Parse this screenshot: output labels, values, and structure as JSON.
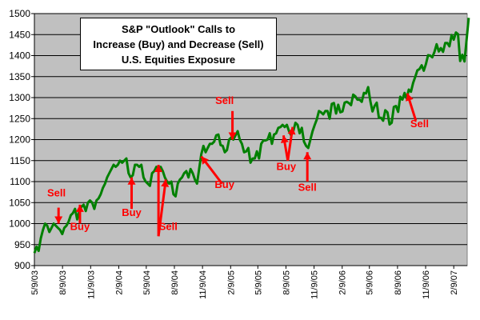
{
  "chart_data": {
    "type": "line",
    "title_lines": [
      "S&P \"Outlook\" Calls to",
      "Increase (Buy) and Decrease (Sell)",
      "U.S. Equities Exposure"
    ],
    "ylim": [
      900,
      1500
    ],
    "yticks": [
      900,
      950,
      1000,
      1050,
      1100,
      1150,
      1200,
      1250,
      1300,
      1350,
      1400,
      1450,
      1500
    ],
    "xlim": [
      "2003-05-09",
      "2007-03-25"
    ],
    "xticks": [
      "5/9/03",
      "8/9/03",
      "11/9/03",
      "2/9/04",
      "5/9/04",
      "8/9/04",
      "11/9/04",
      "2/9/05",
      "5/9/05",
      "8/9/05",
      "11/9/05",
      "2/9/06",
      "5/9/06",
      "8/9/06",
      "11/9/06",
      "2/9/07"
    ],
    "grid": true,
    "plot_background": "#c0c0c0",
    "series": [
      {
        "color": "#008000",
        "points": [
          [
            "2003-05-09",
            930
          ],
          [
            "2003-05-16",
            945
          ],
          [
            "2003-05-23",
            935
          ],
          [
            "2003-05-30",
            965
          ],
          [
            "2003-06-06",
            985
          ],
          [
            "2003-06-13",
            1000
          ],
          [
            "2003-06-20",
            995
          ],
          [
            "2003-06-27",
            980
          ],
          [
            "2003-07-04",
            990
          ],
          [
            "2003-07-11",
            1000
          ],
          [
            "2003-07-18",
            995
          ],
          [
            "2003-07-25",
            990
          ],
          [
            "2003-08-01",
            985
          ],
          [
            "2003-08-08",
            975
          ],
          [
            "2003-08-15",
            990
          ],
          [
            "2003-08-22",
            995
          ],
          [
            "2003-08-29",
            1005
          ],
          [
            "2003-09-05",
            1020
          ],
          [
            "2003-09-12",
            1025
          ],
          [
            "2003-09-19",
            1035
          ],
          [
            "2003-09-26",
            1010
          ],
          [
            "2003-10-03",
            1030
          ],
          [
            "2003-10-10",
            1040
          ],
          [
            "2003-10-17",
            1045
          ],
          [
            "2003-10-24",
            1030
          ],
          [
            "2003-10-31",
            1050
          ],
          [
            "2003-11-07",
            1055
          ],
          [
            "2003-11-14",
            1050
          ],
          [
            "2003-11-21",
            1035
          ],
          [
            "2003-11-28",
            1055
          ],
          [
            "2003-12-05",
            1060
          ],
          [
            "2003-12-12",
            1070
          ],
          [
            "2003-12-19",
            1085
          ],
          [
            "2003-12-26",
            1095
          ],
          [
            "2004-01-02",
            1110
          ],
          [
            "2004-01-09",
            1120
          ],
          [
            "2004-01-16",
            1130
          ],
          [
            "2004-01-23",
            1140
          ],
          [
            "2004-01-30",
            1135
          ],
          [
            "2004-02-06",
            1140
          ],
          [
            "2004-02-13",
            1150
          ],
          [
            "2004-02-20",
            1145
          ],
          [
            "2004-02-27",
            1150
          ],
          [
            "2004-03-05",
            1155
          ],
          [
            "2004-03-12",
            1120
          ],
          [
            "2004-03-19",
            1110
          ],
          [
            "2004-03-26",
            1115
          ],
          [
            "2004-04-02",
            1140
          ],
          [
            "2004-04-09",
            1140
          ],
          [
            "2004-04-16",
            1135
          ],
          [
            "2004-04-23",
            1140
          ],
          [
            "2004-04-30",
            1110
          ],
          [
            "2004-05-07",
            1100
          ],
          [
            "2004-05-14",
            1095
          ],
          [
            "2004-05-21",
            1090
          ],
          [
            "2004-05-28",
            1120
          ],
          [
            "2004-06-04",
            1125
          ],
          [
            "2004-06-11",
            1135
          ],
          [
            "2004-06-18",
            1130
          ],
          [
            "2004-06-25",
            1135
          ],
          [
            "2004-07-02",
            1125
          ],
          [
            "2004-07-09",
            1110
          ],
          [
            "2004-07-16",
            1100
          ],
          [
            "2004-07-23",
            1095
          ],
          [
            "2004-07-30",
            1100
          ],
          [
            "2004-08-06",
            1070
          ],
          [
            "2004-08-13",
            1065
          ],
          [
            "2004-08-20",
            1095
          ],
          [
            "2004-08-27",
            1105
          ],
          [
            "2004-09-03",
            1110
          ],
          [
            "2004-09-10",
            1120
          ],
          [
            "2004-09-17",
            1125
          ],
          [
            "2004-09-24",
            1110
          ],
          [
            "2004-10-01",
            1130
          ],
          [
            "2004-10-08",
            1120
          ],
          [
            "2004-10-15",
            1105
          ],
          [
            "2004-10-22",
            1095
          ],
          [
            "2004-10-29",
            1130
          ],
          [
            "2004-11-05",
            1165
          ],
          [
            "2004-11-12",
            1185
          ],
          [
            "2004-11-19",
            1170
          ],
          [
            "2004-11-26",
            1180
          ],
          [
            "2004-12-03",
            1190
          ],
          [
            "2004-12-10",
            1190
          ],
          [
            "2004-12-17",
            1195
          ],
          [
            "2004-12-24",
            1210
          ],
          [
            "2004-12-31",
            1212
          ],
          [
            "2005-01-07",
            1187
          ],
          [
            "2005-01-14",
            1185
          ],
          [
            "2005-01-21",
            1170
          ],
          [
            "2005-01-28",
            1175
          ],
          [
            "2005-02-04",
            1200
          ],
          [
            "2005-02-11",
            1205
          ],
          [
            "2005-02-18",
            1200
          ],
          [
            "2005-02-25",
            1210
          ],
          [
            "2005-03-04",
            1220
          ],
          [
            "2005-03-11",
            1200
          ],
          [
            "2005-03-18",
            1190
          ],
          [
            "2005-03-25",
            1170
          ],
          [
            "2005-04-01",
            1172
          ],
          [
            "2005-04-08",
            1180
          ],
          [
            "2005-04-15",
            1145
          ],
          [
            "2005-04-22",
            1155
          ],
          [
            "2005-04-29",
            1155
          ],
          [
            "2005-05-06",
            1172
          ],
          [
            "2005-05-13",
            1155
          ],
          [
            "2005-05-20",
            1190
          ],
          [
            "2005-05-27",
            1198
          ],
          [
            "2005-06-03",
            1198
          ],
          [
            "2005-06-10",
            1200
          ],
          [
            "2005-06-17",
            1215
          ],
          [
            "2005-06-24",
            1190
          ],
          [
            "2005-07-01",
            1212
          ],
          [
            "2005-07-08",
            1215
          ],
          [
            "2005-07-15",
            1228
          ],
          [
            "2005-07-22",
            1230
          ],
          [
            "2005-07-29",
            1235
          ],
          [
            "2005-08-05",
            1230
          ],
          [
            "2005-08-12",
            1235
          ],
          [
            "2005-08-19",
            1220
          ],
          [
            "2005-08-26",
            1210
          ],
          [
            "2005-09-02",
            1220
          ],
          [
            "2005-09-09",
            1240
          ],
          [
            "2005-09-16",
            1235
          ],
          [
            "2005-09-23",
            1215
          ],
          [
            "2005-09-30",
            1228
          ],
          [
            "2005-10-07",
            1195
          ],
          [
            "2005-10-14",
            1185
          ],
          [
            "2005-10-21",
            1180
          ],
          [
            "2005-10-28",
            1200
          ],
          [
            "2005-11-04",
            1220
          ],
          [
            "2005-11-11",
            1235
          ],
          [
            "2005-11-18",
            1248
          ],
          [
            "2005-11-25",
            1268
          ],
          [
            "2005-12-02",
            1265
          ],
          [
            "2005-12-09",
            1260
          ],
          [
            "2005-12-16",
            1268
          ],
          [
            "2005-12-23",
            1268
          ],
          [
            "2005-12-30",
            1250
          ],
          [
            "2006-01-06",
            1285
          ],
          [
            "2006-01-13",
            1287
          ],
          [
            "2006-01-20",
            1262
          ],
          [
            "2006-01-27",
            1283
          ],
          [
            "2006-02-03",
            1265
          ],
          [
            "2006-02-10",
            1267
          ],
          [
            "2006-02-17",
            1288
          ],
          [
            "2006-02-24",
            1290
          ],
          [
            "2006-03-03",
            1287
          ],
          [
            "2006-03-10",
            1282
          ],
          [
            "2006-03-17",
            1307
          ],
          [
            "2006-03-24",
            1303
          ],
          [
            "2006-03-31",
            1295
          ],
          [
            "2006-04-07",
            1295
          ],
          [
            "2006-04-14",
            1290
          ],
          [
            "2006-04-21",
            1311
          ],
          [
            "2006-04-28",
            1310
          ],
          [
            "2006-05-05",
            1325
          ],
          [
            "2006-05-12",
            1292
          ],
          [
            "2006-05-19",
            1267
          ],
          [
            "2006-05-26",
            1280
          ],
          [
            "2006-06-02",
            1288
          ],
          [
            "2006-06-09",
            1252
          ],
          [
            "2006-06-16",
            1252
          ],
          [
            "2006-06-23",
            1245
          ],
          [
            "2006-06-30",
            1270
          ],
          [
            "2006-07-07",
            1265
          ],
          [
            "2006-07-14",
            1236
          ],
          [
            "2006-07-21",
            1240
          ],
          [
            "2006-07-28",
            1278
          ],
          [
            "2006-08-04",
            1280
          ],
          [
            "2006-08-11",
            1266
          ],
          [
            "2006-08-18",
            1302
          ],
          [
            "2006-08-25",
            1295
          ],
          [
            "2006-09-01",
            1311
          ],
          [
            "2006-09-08",
            1298
          ],
          [
            "2006-09-15",
            1319
          ],
          [
            "2006-09-22",
            1314
          ],
          [
            "2006-09-29",
            1335
          ],
          [
            "2006-10-06",
            1349
          ],
          [
            "2006-10-13",
            1365
          ],
          [
            "2006-10-20",
            1368
          ],
          [
            "2006-10-27",
            1377
          ],
          [
            "2006-11-03",
            1364
          ],
          [
            "2006-11-10",
            1380
          ],
          [
            "2006-11-17",
            1401
          ],
          [
            "2006-11-24",
            1400
          ],
          [
            "2006-12-01",
            1396
          ],
          [
            "2006-12-08",
            1409
          ],
          [
            "2006-12-15",
            1427
          ],
          [
            "2006-12-22",
            1410
          ],
          [
            "2006-12-29",
            1418
          ],
          [
            "2007-01-05",
            1409
          ],
          [
            "2007-01-12",
            1430
          ],
          [
            "2007-01-19",
            1430
          ],
          [
            "2007-01-26",
            1422
          ],
          [
            "2007-02-02",
            1449
          ],
          [
            "2007-02-09",
            1438
          ],
          [
            "2007-02-16",
            1455
          ],
          [
            "2007-02-23",
            1451
          ],
          [
            "2007-03-02",
            1387
          ],
          [
            "2007-03-09",
            1402
          ],
          [
            "2007-03-16",
            1386
          ],
          [
            "2007-03-23",
            1437
          ],
          [
            "2007-03-30",
            1490
          ]
        ]
      }
    ],
    "annotations": [
      {
        "label": "Sell",
        "text_date": "2003-07-20",
        "text_value": 1065,
        "arrow_from": [
          "2003-07-27",
          1038
        ],
        "arrow_to": [
          "2003-07-27",
          1000
        ]
      },
      {
        "label": "Buy",
        "text_date": "2003-10-05",
        "text_value": 985,
        "arrow_from": [
          "2003-10-05",
          1000
        ],
        "arrow_to": [
          "2003-10-05",
          1045
        ]
      },
      {
        "label": "Buy",
        "text_date": "2004-03-22",
        "text_value": 1018,
        "arrow_from": [
          "2004-03-22",
          1035
        ],
        "arrow_to": [
          "2004-03-22",
          1110
        ]
      },
      {
        "label": "Sell",
        "text_date": "2004-07-20",
        "text_value": 985,
        "arrow_from": [
          "2004-06-18",
          970
        ],
        "arrow_to": [
          "2004-06-18",
          1140
        ]
      },
      {
        "label": "",
        "text_date": "2004-06-18",
        "text_value": 970,
        "arrow_from": [
          "2004-06-18",
          970
        ],
        "arrow_to": [
          "2004-07-12",
          1105
        ]
      },
      {
        "label": "Buy",
        "text_date": "2005-01-20",
        "text_value": 1085,
        "arrow_from": [
          "2005-01-12",
          1095
        ],
        "arrow_to": [
          "2004-11-05",
          1160
        ]
      },
      {
        "label": "Sell",
        "text_date": "2005-01-20",
        "text_value": 1285,
        "arrow_from": [
          "2005-02-15",
          1268
        ],
        "arrow_to": [
          "2005-02-15",
          1200
        ]
      },
      {
        "label": "Buy",
        "text_date": "2005-08-10",
        "text_value": 1128,
        "arrow_from": [
          "2005-08-15",
          1150
        ],
        "arrow_to": [
          "2005-08-01",
          1210
        ]
      },
      {
        "label": "",
        "text_date": "2005-08-15",
        "text_value": 1150,
        "arrow_from": [
          "2005-08-15",
          1150
        ],
        "arrow_to": [
          "2005-08-31",
          1230
        ]
      },
      {
        "label": "Sell",
        "text_date": "2005-10-18",
        "text_value": 1078,
        "arrow_from": [
          "2005-10-18",
          1100
        ],
        "arrow_to": [
          "2005-10-18",
          1170
        ]
      },
      {
        "label": "Sell",
        "text_date": "2006-10-20",
        "text_value": 1230,
        "arrow_from": [
          "2006-10-08",
          1245
        ],
        "arrow_to": [
          "2006-09-10",
          1310
        ]
      }
    ]
  }
}
